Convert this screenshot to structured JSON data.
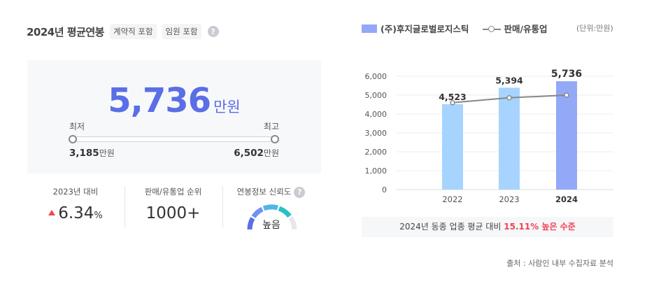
{
  "header": {
    "title": "2024년 평균연봉",
    "tags": [
      "계약직 포함",
      "임원 포함"
    ],
    "help_icon": "?"
  },
  "salary": {
    "value": "5,736",
    "unit": "만원",
    "min_label": "최저",
    "max_label": "최고",
    "min_value": "3,185",
    "max_value": "6,502",
    "value_unit": "만원"
  },
  "stats": {
    "change": {
      "label": "2023년 대비",
      "value": "6.34",
      "unit": "%",
      "direction": "up",
      "color": "#f04452"
    },
    "rank": {
      "label": "판매/유통업 순위",
      "value": "1000+"
    },
    "reliability": {
      "label": "연봉정보 신뢰도",
      "value": "높음",
      "help_icon": "?"
    }
  },
  "legend": {
    "company": "(주)후지글로벌로지스틱",
    "industry": "판매/유통업",
    "unit_note": "(단위:만원)"
  },
  "chart_data": {
    "type": "bar",
    "categories": [
      "2022",
      "2023",
      "2024"
    ],
    "series": [
      {
        "name": "(주)후지글로벌로지스틱",
        "type": "bar",
        "values": [
          4523,
          5394,
          5736
        ],
        "value_labels": [
          "4,523",
          "5,394",
          "5,736"
        ],
        "colors": [
          "#a6d4ff",
          "#a6d4ff",
          "#94a8f8"
        ]
      },
      {
        "name": "판매/유통업",
        "type": "line",
        "values": [
          4600,
          4860,
          5000
        ],
        "color": "#888888"
      }
    ],
    "y_ticks": [
      "6,000",
      "5,000",
      "4,000",
      "3,000",
      "2,000",
      "1,000",
      "0"
    ],
    "ylim": [
      0,
      6000
    ],
    "grid": true
  },
  "summary": {
    "prefix": "2024년 동종 업종 평균 대비",
    "highlight": "15.11% 높은 수준"
  },
  "source": "출처 : 사람인 내부 수집자료 분석"
}
